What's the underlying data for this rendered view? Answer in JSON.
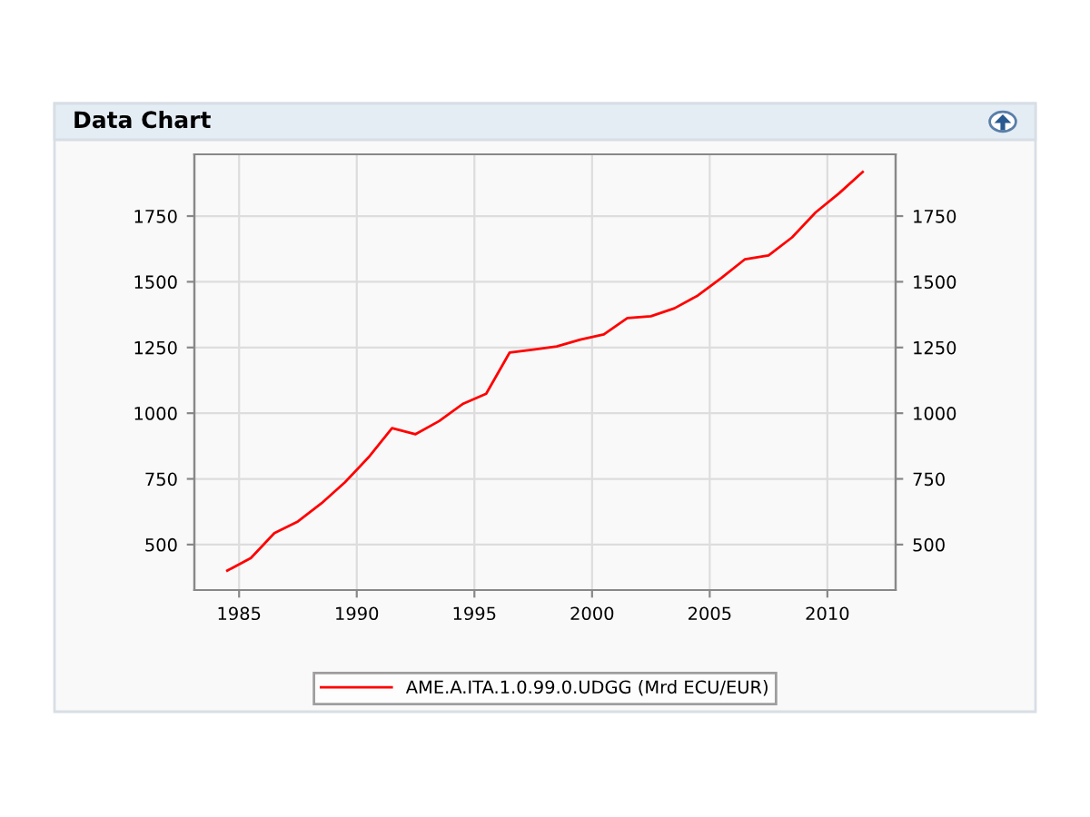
{
  "chart_data": {
    "type": "line",
    "title": "Data Chart",
    "x": [
      1984.5,
      1985.5,
      1986.5,
      1987.5,
      1988.5,
      1989.5,
      1990.5,
      1991.5,
      1992.5,
      1993.5,
      1994.5,
      1995.5,
      1996.5,
      1997.5,
      1998.5,
      1999.5,
      2000.5,
      2001.5,
      2002.5,
      2003.5,
      2004.5,
      2005.5,
      2006.5,
      2007.5,
      2008.5,
      2009.5,
      2010.5,
      2011.5
    ],
    "series": [
      {
        "name": "AME.A.ITA.1.0.99.0.UDGG (Mrd ECU/EUR)",
        "color": "#ff0000",
        "values": [
          401,
          449,
          544,
          588,
          657,
          737,
          832,
          943,
          920,
          970,
          1035,
          1074,
          1231,
          1242,
          1254,
          1280,
          1300,
          1362,
          1369,
          1399,
          1448,
          1515,
          1586,
          1600,
          1669,
          1764,
          1837,
          1918
        ]
      }
    ],
    "xlim": [
      1983.1,
      2012.9
    ],
    "xticks": [
      1985,
      1990,
      1995,
      2000,
      2005,
      2010
    ],
    "ylim": [
      327,
      1985
    ],
    "yticks": [
      500,
      750,
      1000,
      1250,
      1500,
      1750
    ],
    "y2lim": [
      327,
      1985
    ],
    "y2ticks": [
      500,
      750,
      1000,
      1250,
      1500,
      1750
    ],
    "grid": true,
    "legend": "bottom",
    "marker": "none",
    "line_style": "solid"
  }
}
